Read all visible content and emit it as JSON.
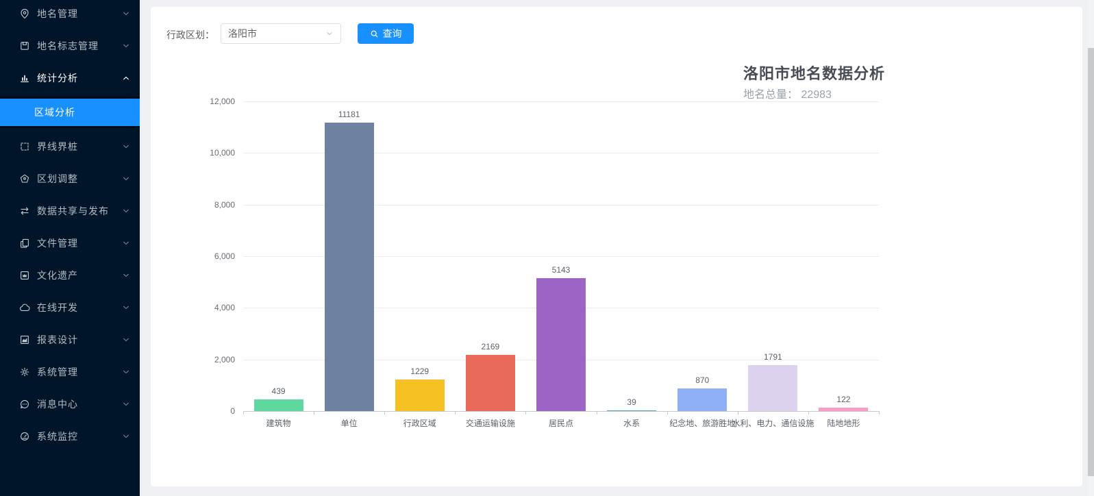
{
  "colors": {
    "accent": "#1890ff",
    "sidebar_bg": "#001529",
    "submenu_bg": "#000c17",
    "bar_palette": [
      "#5fd8a0",
      "#6f81a0",
      "#f4c022",
      "#e9695b",
      "#9b64c5",
      "#4fb0ab",
      "#90b0f5",
      "#dcd2ee",
      "#fa9dc4"
    ]
  },
  "sidebar": {
    "items": [
      {
        "label": "地名管理",
        "icon": "location-pin-icon",
        "open": false
      },
      {
        "label": "地名标志管理",
        "icon": "signboard-icon",
        "open": false
      },
      {
        "label": "统计分析",
        "icon": "stats-icon",
        "open": true,
        "children": [
          {
            "label": "区域分析",
            "active": true
          }
        ]
      },
      {
        "label": "界线界桩",
        "icon": "boundary-icon",
        "open": false
      },
      {
        "label": "区划调整",
        "icon": "district-icon",
        "open": false
      },
      {
        "label": "数据共享与发布",
        "icon": "share-icon",
        "open": false
      },
      {
        "label": "文件管理",
        "icon": "files-icon",
        "open": false
      },
      {
        "label": "文化遗产",
        "icon": "heritage-icon",
        "open": false
      },
      {
        "label": "在线开发",
        "icon": "cloud-icon",
        "open": false
      },
      {
        "label": "报表设计",
        "icon": "report-icon",
        "open": false
      },
      {
        "label": "系统管理",
        "icon": "gear-icon",
        "open": false
      },
      {
        "label": "消息中心",
        "icon": "message-icon",
        "open": false
      },
      {
        "label": "系统监控",
        "icon": "monitor-icon",
        "open": false
      }
    ]
  },
  "filter": {
    "label": "行政区划：",
    "region_value": "洛阳市",
    "search_button_label": "查询"
  },
  "chart_data": {
    "type": "bar",
    "title": "洛阳市地名数据分析",
    "subtitle": "地名总量： 22983",
    "categories": [
      "建筑物",
      "单位",
      "行政区域",
      "交通运输设施",
      "居民点",
      "水系",
      "纪念地、旅游胜地",
      "水利、电力、通信设施",
      "陆地地形"
    ],
    "values": [
      439,
      11181,
      1229,
      2169,
      5143,
      39,
      870,
      1791,
      122
    ],
    "colors": [
      "#5fd8a0",
      "#6f81a0",
      "#f4c022",
      "#e9695b",
      "#9b64c5",
      "#4fb0ab",
      "#90b0f5",
      "#dcd2ee",
      "#fa9dc4"
    ],
    "xlabel": "",
    "ylabel": "",
    "ylim": [
      0,
      12000
    ],
    "yticks": [
      {
        "label": "0",
        "value": 0
      },
      {
        "label": "2,000",
        "value": 2000
      },
      {
        "label": "4,000",
        "value": 4000
      },
      {
        "label": "6,000",
        "value": 6000
      },
      {
        "label": "8,000",
        "value": 8000
      },
      {
        "label": "10,000",
        "value": 10000
      },
      {
        "label": "12,000",
        "value": 12000
      }
    ],
    "grid": true,
    "value_labels": true,
    "legend_position": "none"
  }
}
